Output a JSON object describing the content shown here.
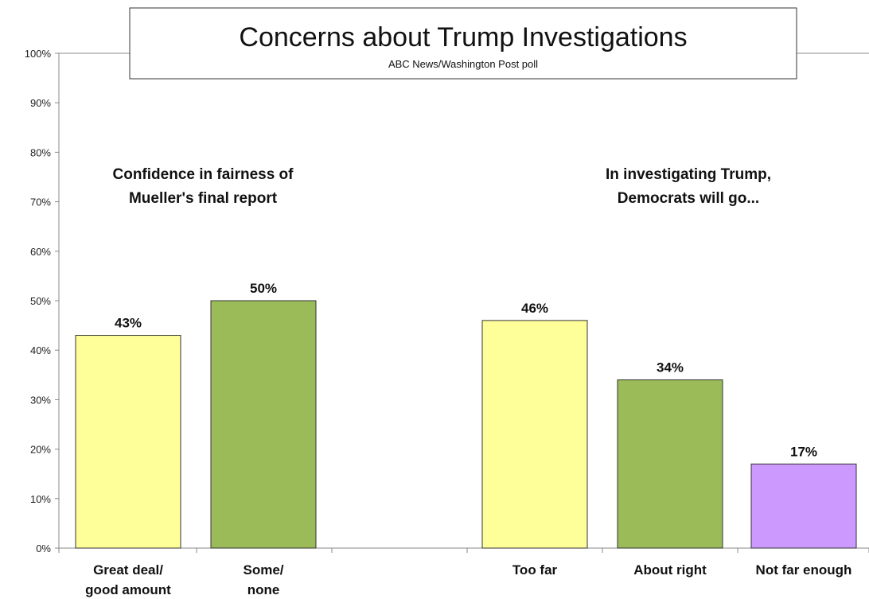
{
  "chart_data": {
    "type": "bar",
    "title": "Concerns about Trump Investigations",
    "subtitle": "ABC News/Washington  Post poll",
    "ylim": [
      0,
      100
    ],
    "yticks": [
      "0%",
      "10%",
      "20%",
      "30%",
      "40%",
      "50%",
      "60%",
      "70%",
      "80%",
      "90%",
      "100%"
    ],
    "grid": false,
    "groups": [
      {
        "label_lines": [
          "Confidence in fairness of",
          "Mueller's  final report"
        ],
        "bars": [
          {
            "category_lines": [
              "Great deal/",
              "good amount"
            ],
            "value": 43,
            "value_label": "43%",
            "color": "#ffff99"
          },
          {
            "category_lines": [
              "Some/",
              "none"
            ],
            "value": 50,
            "value_label": "50%",
            "color": "#9bbb59"
          }
        ]
      },
      {
        "label_lines": [
          "In investigating Trump,",
          "Democrats will  go..."
        ],
        "bars": [
          {
            "category_lines": [
              "Too far"
            ],
            "value": 46,
            "value_label": "46%",
            "color": "#ffff99"
          },
          {
            "category_lines": [
              "About right"
            ],
            "value": 34,
            "value_label": "34%",
            "color": "#9bbb59"
          },
          {
            "category_lines": [
              "Not far enough"
            ],
            "value": 17,
            "value_label": "17%",
            "color": "#cc99ff"
          }
        ]
      }
    ]
  }
}
